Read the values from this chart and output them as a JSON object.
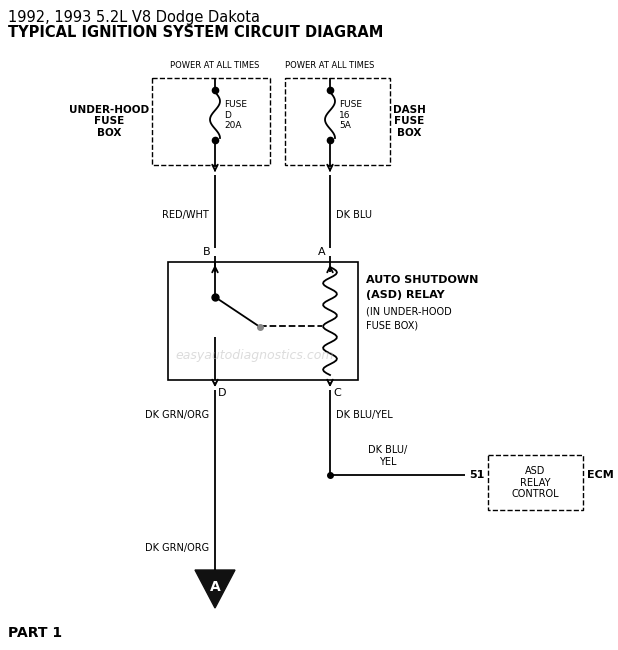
{
  "title_line1": "1992, 1993 5.2L V8 Dodge Dakota",
  "title_line2": "TYPICAL IGNITION SYSTEM CIRCUIT DIAGRAM",
  "bg_color": "#ffffff",
  "line_color": "#000000",
  "watermark": "easyautodiagnostics.com",
  "fuse_box1_label": "UNDER-HOOD\nFUSE\nBOX",
  "fuse_box2_label": "DASH\nFUSE\nBOX",
  "fuse1_label": "FUSE\nD\n20A",
  "fuse2_label": "FUSE\n16\n5A",
  "power_label": "POWER AT ALL TIMES",
  "wire1_label": "RED/WHT",
  "wire2_label": "DK BLU",
  "wire3_label": "DK GRN/ORG",
  "wire4_label": "DK BLU/YEL",
  "wire5_label": "DK BLU/\nYEL",
  "wire6_label": "DK GRN/ORG",
  "relay_label1": "AUTO SHUTDOWN",
  "relay_label2": "(ASD) RELAY",
  "relay_label3": "(IN UNDER-HOOD",
  "relay_label4": "FUSE BOX)",
  "ecm_label": "ECM",
  "ecm_sublabel": "ASD\nRELAY\nCONTROL",
  "ecm_pin": "51",
  "part_label": "PART 1",
  "connector_A_label": "A",
  "connector_B_label": "B",
  "connector_C_label": "C",
  "connector_D_label": "D"
}
